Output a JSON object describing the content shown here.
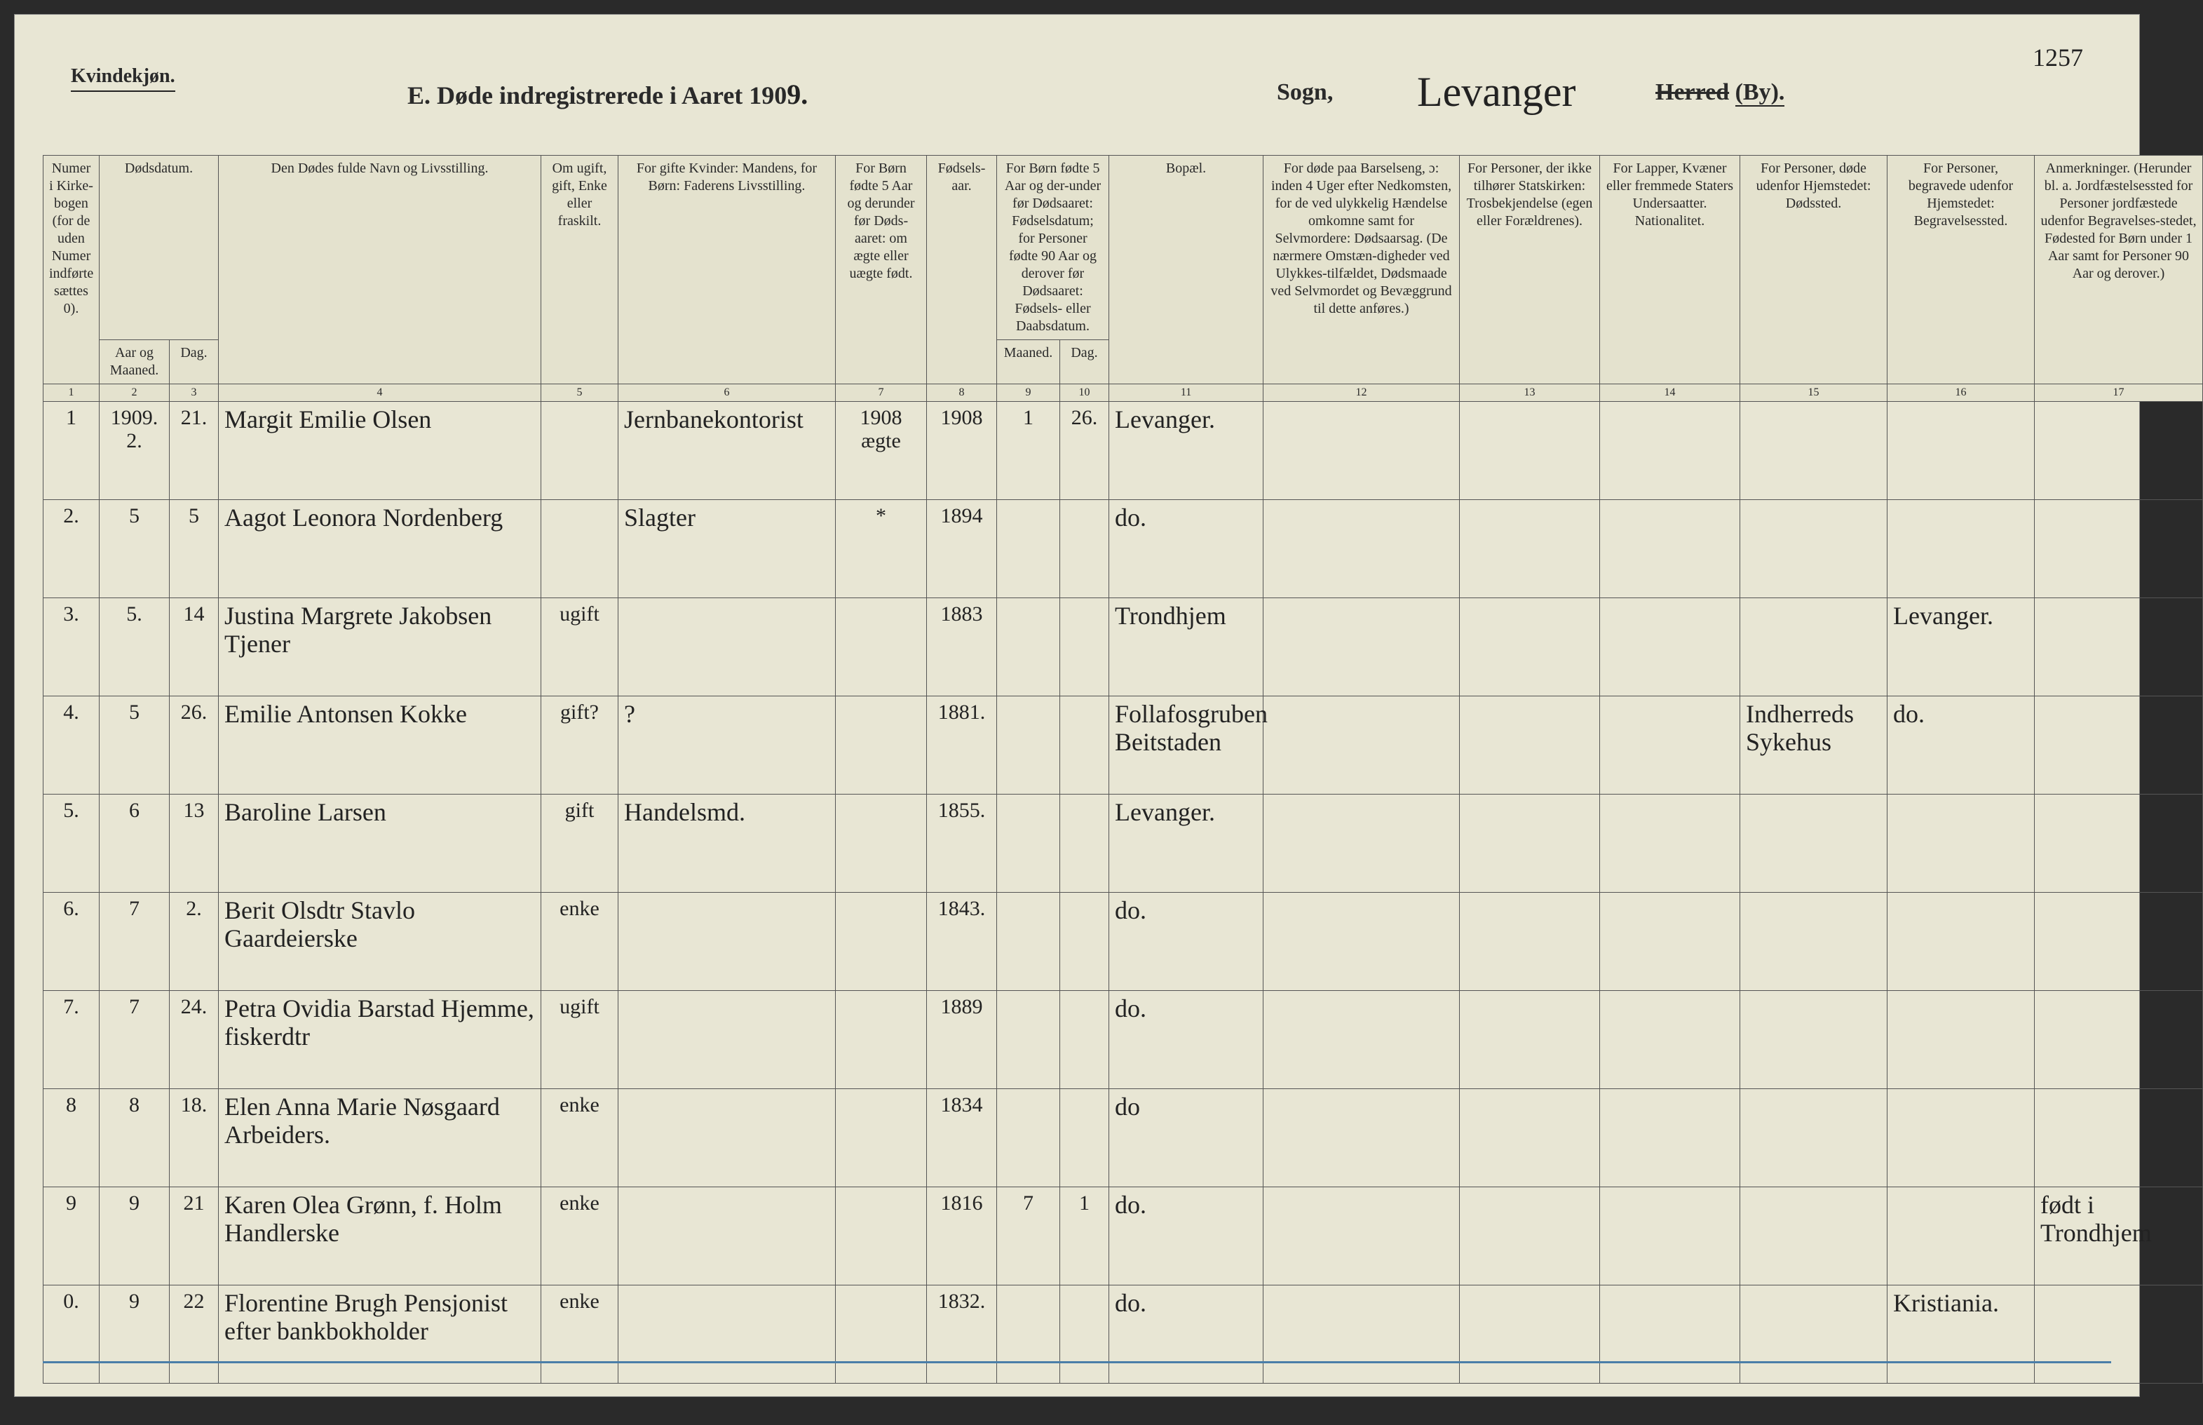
{
  "header": {
    "gender": "Kvindekjøn.",
    "page_number": "1257",
    "title_prefix": "E.   Døde indregistrerede i Aaret 190",
    "title_year_hand": "9.",
    "sogn_label": "Sogn,",
    "parish_hand": "Levanger",
    "herred_strike": "Herred",
    "herred_by": "(By)."
  },
  "columns": {
    "h1": "Numer i Kirke-bogen (for de uden Numer indførte sættes 0).",
    "h2_top": "Dødsdatum.",
    "h2a": "Aar og Maaned.",
    "h2b": "Dag.",
    "h4": "Den Dødes fulde Navn og Livsstilling.",
    "h5": "Om ugift, gift, Enke eller fraskilt.",
    "h6": "For gifte Kvinder: Mandens, for Børn: Faderens Livsstilling.",
    "h7": "For Børn fødte 5 Aar og derunder før Døds-aaret: om ægte eller uægte født.",
    "h8": "Fødsels-aar.",
    "h9_top": "For Børn fødte 5 Aar og der-under før Dødsaaret: Fødselsdatum; for Personer fødte 90 Aar og derover før Dødsaaret: Fødsels- eller Daabsdatum.",
    "h9a": "Maaned.",
    "h9b": "Dag.",
    "h11": "Bopæl.",
    "h12": "For døde paa Barselseng, ɔ: inden 4 Uger efter Nedkomsten, for de ved ulykkelig Hændelse omkomne samt for Selvmordere: Dødsaarsag. (De nærmere Omstæn-digheder ved Ulykkes-tilfældet, Dødsmaade ved Selvmordet og Bevæggrund til dette anføres.)",
    "h13": "For Personer, der ikke tilhører Statskirken: Trosbekjendelse (egen eller Forældrenes).",
    "h14": "For Lapper, Kvæner eller fremmede Staters Undersaatter. Nationalitet.",
    "h15": "For Personer, døde udenfor Hjemstedet: Dødssted.",
    "h16": "For Personer, begravede udenfor Hjemstedet: Begravelsessted.",
    "h17": "Anmerkninger. (Herunder bl. a. Jordfæstelsessted for Personer jordfæstede udenfor Begravelses-stedet, Fødested for Børn under 1 Aar samt for Personer 90 Aar og derover.)"
  },
  "colnums": [
    "1",
    "2",
    "3",
    "4",
    "5",
    "6",
    "7",
    "8",
    "9",
    "10",
    "11",
    "12",
    "13",
    "14",
    "15",
    "16",
    "17"
  ],
  "year_heading": "1909.",
  "rows": [
    {
      "n": "1",
      "mo": "2.",
      "day": "21.",
      "name": "Margit Emilie Olsen",
      "status": "",
      "father": "Jernbanekontorist",
      "legit": "1908 ægte",
      "birth": "1908",
      "bm": "1",
      "bd": "26.",
      "place": "Levanger.",
      "c12": "",
      "c13": "",
      "c14": "",
      "c15": "",
      "c16": "",
      "c17": ""
    },
    {
      "n": "2.",
      "mo": "5",
      "day": "5",
      "name": "Aagot Leonora Nordenberg",
      "status": "",
      "father": "Slagter",
      "legit": "*",
      "birth": "1894",
      "bm": "",
      "bd": "",
      "place": "do.",
      "c12": "",
      "c13": "",
      "c14": "",
      "c15": "",
      "c16": "",
      "c17": ""
    },
    {
      "n": "3.",
      "mo": "5.",
      "day": "14",
      "name": "Justina Margrete Jakobsen Tjener",
      "status": "ugift",
      "father": "",
      "legit": "",
      "birth": "1883",
      "bm": "",
      "bd": "",
      "place": "Trondhjem",
      "c12": "",
      "c13": "",
      "c14": "",
      "c15": "",
      "c16": "Levanger.",
      "c17": ""
    },
    {
      "n": "4.",
      "mo": "5",
      "day": "26.",
      "name": "Emilie Antonsen Kokke",
      "status": "gift?",
      "father": "?",
      "legit": "",
      "birth": "1881.",
      "bm": "",
      "bd": "",
      "place": "Follafosgruben Beitstaden",
      "c12": "",
      "c13": "",
      "c14": "",
      "c15": "Indherreds Sykehus",
      "c16": "do.",
      "c17": ""
    },
    {
      "n": "5.",
      "mo": "6",
      "day": "13",
      "name": "Baroline Larsen",
      "status": "gift",
      "father": "Handelsmd.",
      "legit": "",
      "birth": "1855.",
      "bm": "",
      "bd": "",
      "place": "Levanger.",
      "c12": "",
      "c13": "",
      "c14": "",
      "c15": "",
      "c16": "",
      "c17": ""
    },
    {
      "n": "6.",
      "mo": "7",
      "day": "2.",
      "name": "Berit Olsdtr Stavlo Gaardeierske",
      "status": "enke",
      "father": "",
      "legit": "",
      "birth": "1843.",
      "bm": "",
      "bd": "",
      "place": "do.",
      "c12": "",
      "c13": "",
      "c14": "",
      "c15": "",
      "c16": "",
      "c17": ""
    },
    {
      "n": "7.",
      "mo": "7",
      "day": "24.",
      "name": "Petra Ovidia Barstad Hjemme, fiskerdtr",
      "status": "ugift",
      "father": "",
      "legit": "",
      "birth": "1889",
      "bm": "",
      "bd": "",
      "place": "do.",
      "c12": "",
      "c13": "",
      "c14": "",
      "c15": "",
      "c16": "",
      "c17": ""
    },
    {
      "n": "8",
      "mo": "8",
      "day": "18.",
      "name": "Elen Anna Marie Nøsgaard Arbeiders.",
      "status": "enke",
      "father": "",
      "legit": "",
      "birth": "1834",
      "bm": "",
      "bd": "",
      "place": "do",
      "c12": "",
      "c13": "",
      "c14": "",
      "c15": "",
      "c16": "",
      "c17": ""
    },
    {
      "n": "9",
      "mo": "9",
      "day": "21",
      "name": "Karen Olea Grønn, f. Holm Handlerske",
      "status": "enke",
      "father": "",
      "legit": "",
      "birth": "1816",
      "bm": "7",
      "bd": "1",
      "place": "do.",
      "c12": "",
      "c13": "",
      "c14": "",
      "c15": "",
      "c16": "",
      "c17": "født i Trondhjem"
    },
    {
      "n": "0.",
      "mo": "9",
      "day": "22",
      "name": "Florentine Brugh Pensjonist efter bankbokholder",
      "status": "enke",
      "father": "",
      "legit": "",
      "birth": "1832.",
      "bm": "",
      "bd": "",
      "place": "do.",
      "c12": "",
      "c13": "",
      "c14": "",
      "c15": "",
      "c16": "Kristiania.",
      "c17": ""
    }
  ]
}
